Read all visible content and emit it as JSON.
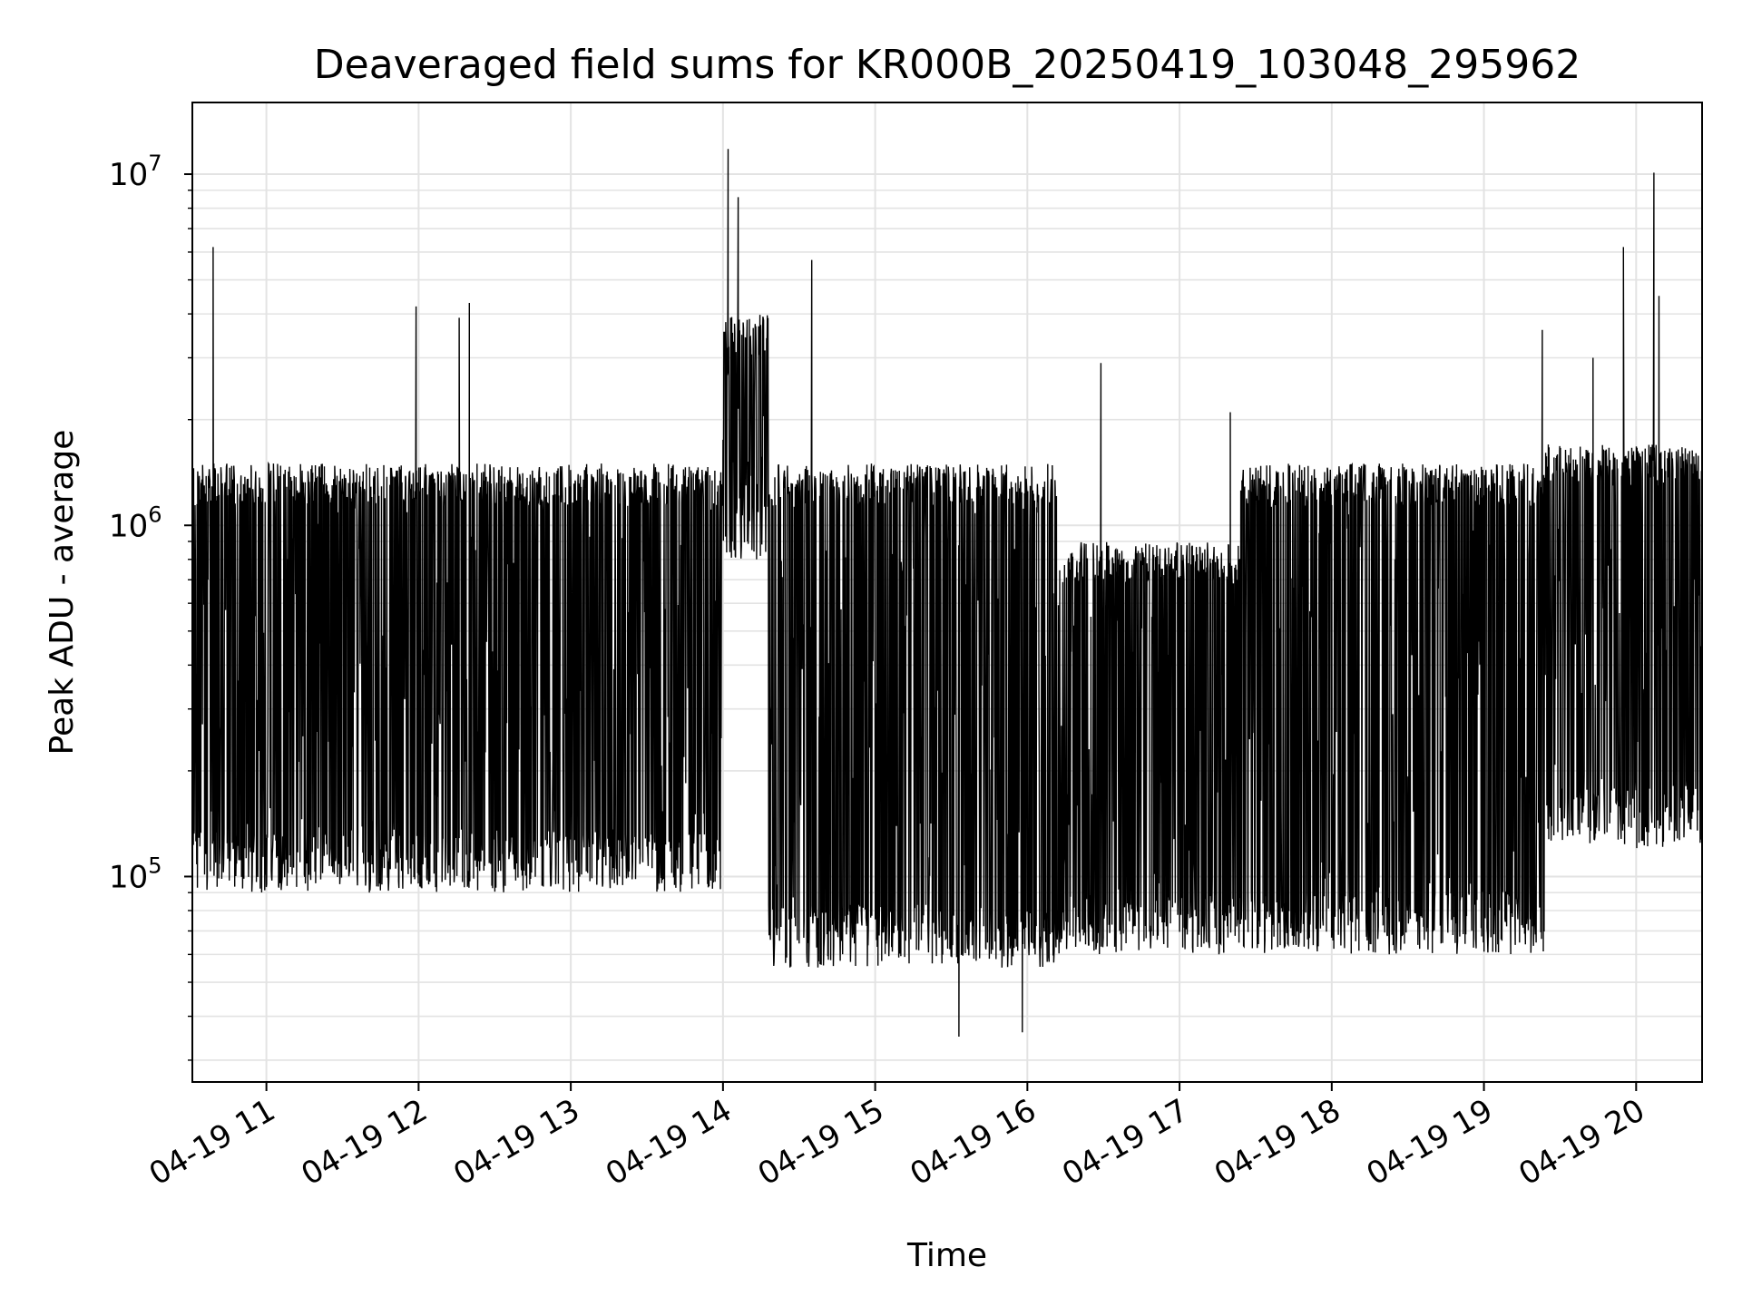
{
  "chart_data": {
    "type": "line",
    "title": "Deaveraged field sums for KR000B_20250419_103048_295962",
    "xlabel": "Time",
    "ylabel": "Peak ADU - average",
    "yscale": "log",
    "ylim": [
      26000,
      16000000
    ],
    "xlim": [
      "2025-04-19T10:30:48",
      "2025-04-19T20:26:00"
    ],
    "grid": true,
    "line_color": "#000000",
    "x_ticks": [
      "04-19 11",
      "04-19 12",
      "04-19 13",
      "04-19 14",
      "04-19 15",
      "04-19 16",
      "04-19 17",
      "04-19 18",
      "04-19 19",
      "04-19 20"
    ],
    "y_ticks": [
      "10^5",
      "10^6",
      "10^7"
    ],
    "segments": [
      {
        "start": "2025-04-19T10:30:48",
        "end": "2025-04-19T14:00:00",
        "typical_high": 1500000,
        "typical_low": 90000
      },
      {
        "start": "2025-04-19T14:00:00",
        "end": "2025-04-19T14:18:00",
        "typical_high": 4000000,
        "typical_low": 800000
      },
      {
        "start": "2025-04-19T14:18:00",
        "end": "2025-04-19T16:12:00",
        "typical_high": 1500000,
        "typical_low": 55000
      },
      {
        "start": "2025-04-19T16:12:00",
        "end": "2025-04-19T17:24:00",
        "typical_high": 900000,
        "typical_low": 60000
      },
      {
        "start": "2025-04-19T17:24:00",
        "end": "2025-04-19T19:24:00",
        "typical_high": 1500000,
        "typical_low": 60000
      },
      {
        "start": "2025-04-19T19:24:00",
        "end": "2025-04-19T20:26:00",
        "typical_high": 1700000,
        "typical_low": 120000
      }
    ],
    "highlights": [
      {
        "time": "2025-04-19T10:39:00",
        "value": 6200000
      },
      {
        "time": "2025-04-19T11:59:00",
        "value": 4200000
      },
      {
        "time": "2025-04-19T12:16:00",
        "value": 3900000
      },
      {
        "time": "2025-04-19T12:20:00",
        "value": 4300000
      },
      {
        "time": "2025-04-19T14:02:00",
        "value": 11800000
      },
      {
        "time": "2025-04-19T14:06:00",
        "value": 8600000
      },
      {
        "time": "2025-04-19T14:35:00",
        "value": 5700000
      },
      {
        "time": "2025-04-19T16:29:00",
        "value": 2900000
      },
      {
        "time": "2025-04-19T17:20:00",
        "value": 2100000
      },
      {
        "time": "2025-04-19T19:23:00",
        "value": 3600000
      },
      {
        "time": "2025-04-19T19:43:00",
        "value": 3000000
      },
      {
        "time": "2025-04-19T19:55:00",
        "value": 6200000
      },
      {
        "time": "2025-04-19T20:07:00",
        "value": 10100000
      },
      {
        "time": "2025-04-19T20:09:00",
        "value": 4500000
      },
      {
        "time": "2025-04-19T15:33:00",
        "value": 35000
      },
      {
        "time": "2025-04-19T15:58:00",
        "value": 36000
      }
    ]
  }
}
